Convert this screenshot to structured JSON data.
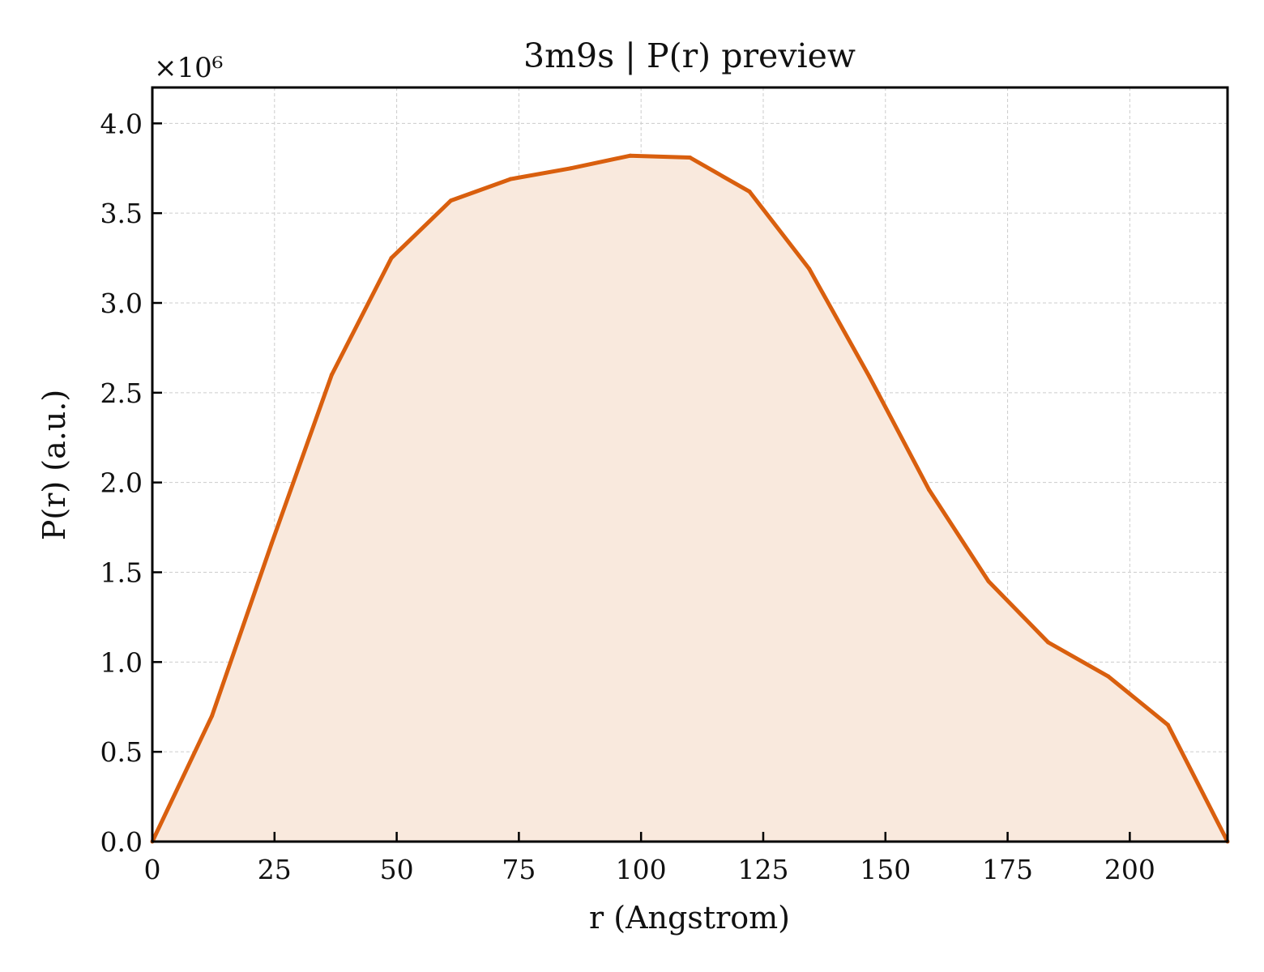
{
  "chart_data": {
    "type": "area",
    "title": "3m9s | P(r) preview",
    "xlabel": "r (Angstrom)",
    "ylabel": "P(r) (a.u.)",
    "y_scale_label": "×10⁶",
    "y_multiplier": 1000000,
    "xlim": [
      0,
      220
    ],
    "ylim": [
      0,
      4200000
    ],
    "x_ticks": [
      0,
      25,
      50,
      75,
      100,
      125,
      150,
      175,
      200
    ],
    "x_tick_labels": [
      "0",
      "25",
      "50",
      "75",
      "100",
      "125",
      "150",
      "175",
      "200"
    ],
    "y_ticks": [
      0,
      500000,
      1000000,
      1500000,
      2000000,
      2500000,
      3000000,
      3500000,
      4000000
    ],
    "y_tick_labels": [
      "0.0",
      "0.5",
      "1.0",
      "1.5",
      "2.0",
      "2.5",
      "3.0",
      "3.5",
      "4.0"
    ],
    "grid": true,
    "legend": "none",
    "series": [
      {
        "color": "#d95f0e",
        "fill_color": "#f9e9dd",
        "x": [
          0,
          12.2,
          24.4,
          36.7,
          48.9,
          61.1,
          73.3,
          85.6,
          97.8,
          110.0,
          122.2,
          134.4,
          146.7,
          158.9,
          171.1,
          183.3,
          195.6,
          207.8,
          220.0
        ],
        "y": [
          0,
          700000,
          1660000,
          2600000,
          3250000,
          3570000,
          3690000,
          3750000,
          3820000,
          3810000,
          3620000,
          3190000,
          2590000,
          1960000,
          1450000,
          1110000,
          920000,
          650000,
          0
        ]
      }
    ]
  }
}
